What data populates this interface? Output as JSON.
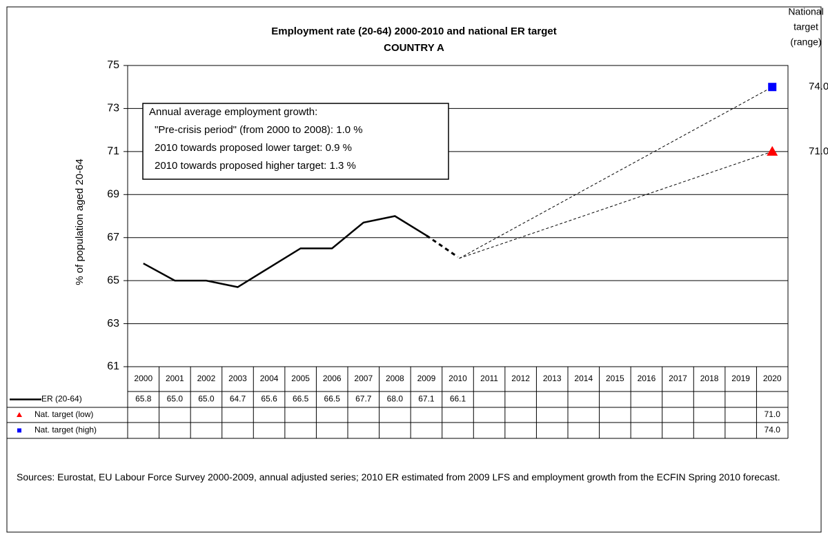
{
  "chart_data": {
    "type": "line",
    "title": "Employment rate (20-64) 2000-2010 and national ER target",
    "subtitle": "COUNTRY A",
    "y_label": "% of population aged 20-64",
    "target_label": [
      "National",
      "target",
      "(range)"
    ],
    "annotation": [
      "Annual average employment growth:",
      "\"Pre-crisis period\" (from 2000 to 2008): 1.0 %",
      "2010 towards proposed lower target: 0.9 %",
      "2010 towards proposed higher target: 1.3 %"
    ],
    "source": "Sources:  Eurostat, EU Labour Force Survey 2000-2009, annual adjusted series; 2010 ER estimated from 2009 LFS and employment growth from the ECFIN Spring 2010 forecast.",
    "categories": [
      "2000",
      "2001",
      "2002",
      "2003",
      "2004",
      "2005",
      "2006",
      "2007",
      "2008",
      "2009",
      "2010",
      "2011",
      "2012",
      "2013",
      "2014",
      "2015",
      "2016",
      "2017",
      "2018",
      "2019",
      "2020"
    ],
    "ylim": [
      61,
      75
    ],
    "yticks": [
      61,
      63,
      65,
      67,
      69,
      71,
      73,
      75
    ],
    "grid": true,
    "series": [
      {
        "name": "ER (20-64)",
        "color": "#000000",
        "marker": "none",
        "values": [
          65.8,
          65.0,
          65.0,
          64.7,
          65.6,
          66.5,
          66.5,
          67.7,
          68.0,
          67.1,
          66.1,
          null,
          null,
          null,
          null,
          null,
          null,
          null,
          null,
          null,
          null
        ],
        "value_labels": [
          "65.8",
          "65.0",
          "65.0",
          "64.7",
          "65.6",
          "66.5",
          "66.5",
          "67.7",
          "68.0",
          "67.1",
          "66.1",
          null,
          null,
          null,
          null,
          null,
          null,
          null,
          null,
          null,
          null
        ]
      },
      {
        "name": "Nat. target (low)",
        "color": "#ff0000",
        "marker": "triangle",
        "values": [
          null,
          null,
          null,
          null,
          null,
          null,
          null,
          null,
          null,
          null,
          null,
          null,
          null,
          null,
          null,
          null,
          null,
          null,
          null,
          null,
          71.0
        ],
        "value_labels": [
          null,
          null,
          null,
          null,
          null,
          null,
          null,
          null,
          null,
          null,
          null,
          null,
          null,
          null,
          null,
          null,
          null,
          null,
          null,
          null,
          "71.0"
        ]
      },
      {
        "name": "Nat. target (high)",
        "color": "#0000ff",
        "marker": "square",
        "values": [
          null,
          null,
          null,
          null,
          null,
          null,
          null,
          null,
          null,
          null,
          null,
          null,
          null,
          null,
          null,
          null,
          null,
          null,
          null,
          null,
          74.0
        ],
        "value_labels": [
          null,
          null,
          null,
          null,
          null,
          null,
          null,
          null,
          null,
          null,
          null,
          null,
          null,
          null,
          null,
          null,
          null,
          null,
          null,
          null,
          "74.0"
        ]
      }
    ]
  }
}
